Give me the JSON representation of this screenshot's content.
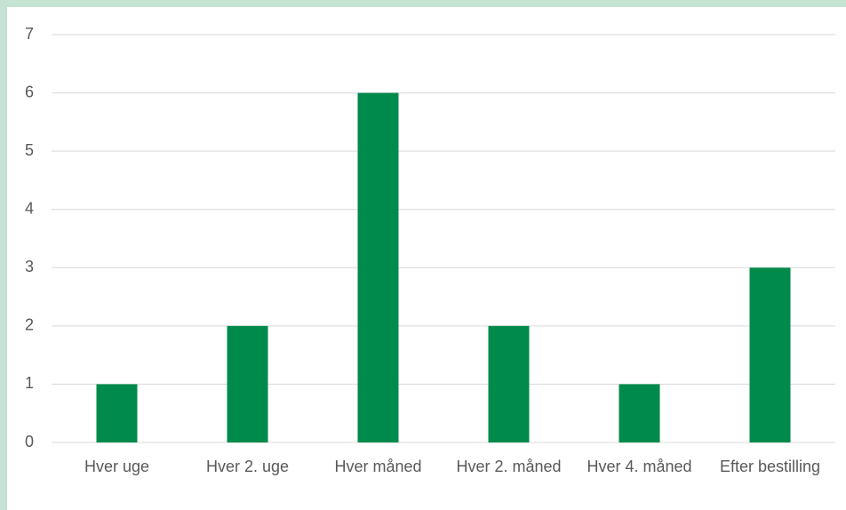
{
  "chart_data": {
    "type": "bar",
    "categories": [
      "Hver uge",
      "Hver 2. uge",
      "Hver måned",
      "Hver 2. måned",
      "Hver 4. måned",
      "Efter bestilling"
    ],
    "values": [
      1,
      2,
      6,
      2,
      1,
      3
    ],
    "color": "#008a4b",
    "ylim": [
      0,
      7
    ],
    "yticks": [
      0,
      1,
      2,
      3,
      4,
      5,
      6,
      7
    ],
    "grid": true
  }
}
